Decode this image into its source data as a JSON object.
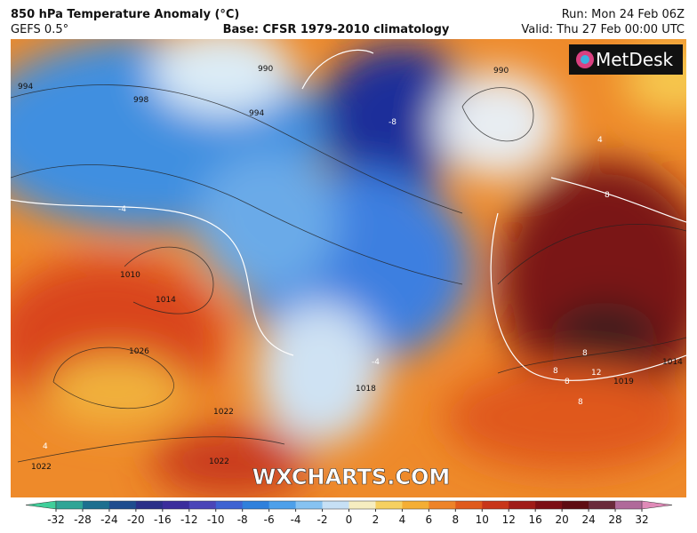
{
  "header": {
    "title": "850 hPa Temperature Anomaly (°C)",
    "model": "GEFS 0.5°",
    "base": "Base: CFSR 1979-2010 climatology",
    "run": "Run: Mon 24 Feb 06Z",
    "valid": "Valid: Thu 27 Feb 00:00 UTC"
  },
  "logo": "MetDesk",
  "watermark": "WXCHARTS.COM",
  "isobar_labels": [
    "994",
    "998",
    "990",
    "994",
    "990",
    "1010",
    "1014",
    "1026",
    "1022",
    "1022",
    "1022",
    "1018",
    "1019",
    "1014"
  ],
  "anomaly_labels": [
    "-8",
    "-4",
    "-4",
    "4",
    "8",
    "8",
    "8",
    "12",
    "4",
    "8",
    "8"
  ],
  "colorbar": {
    "ticks": [
      -32,
      -28,
      -24,
      -20,
      -16,
      -12,
      -10,
      -8,
      -6,
      -4,
      -2,
      0,
      2,
      4,
      6,
      8,
      10,
      12,
      16,
      20,
      24,
      28,
      32
    ]
  }
}
